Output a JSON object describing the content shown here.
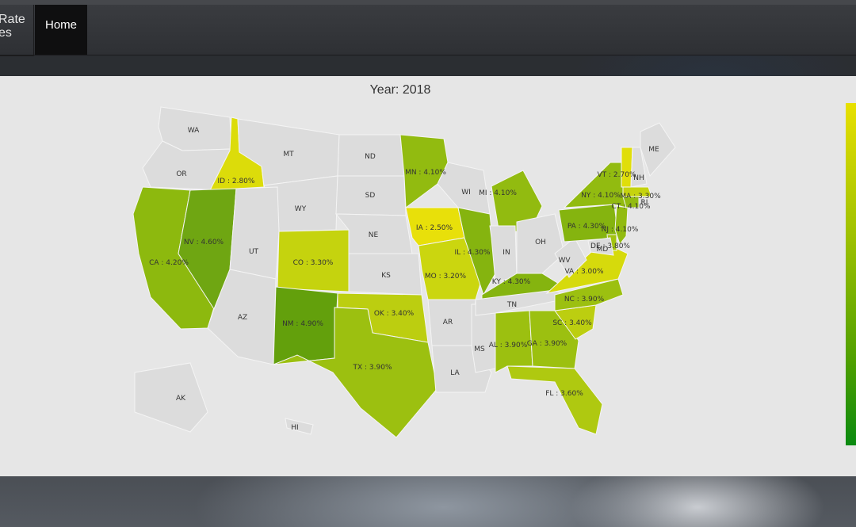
{
  "navbar": {
    "brand_line1": "Rate",
    "brand_line2": "es",
    "home_label": "Home"
  },
  "map": {
    "title": "Year: 2018",
    "legend_colors": [
      "#e8e000",
      "#9cc000",
      "#50a000",
      "#0a8a10"
    ],
    "no_data_color": "#dcdcdc",
    "states": [
      {
        "abbr": "WA",
        "label": "WA",
        "value": null,
        "color": "#dcdcdc"
      },
      {
        "abbr": "OR",
        "label": "OR",
        "value": null,
        "color": "#dcdcdc"
      },
      {
        "abbr": "CA",
        "label": "CA : 4.20%",
        "value": 4.2,
        "color": "#8db90e"
      },
      {
        "abbr": "ID",
        "label": "ID : 2.80%",
        "value": 2.8,
        "color": "#dcdc0a"
      },
      {
        "abbr": "NV",
        "label": "NV : 4.60%",
        "value": 4.6,
        "color": "#6fa612"
      },
      {
        "abbr": "MT",
        "label": "MT",
        "value": null,
        "color": "#dcdcdc"
      },
      {
        "abbr": "WY",
        "label": "WY",
        "value": null,
        "color": "#dcdcdc"
      },
      {
        "abbr": "UT",
        "label": "UT",
        "value": null,
        "color": "#dcdcdc"
      },
      {
        "abbr": "AZ",
        "label": "AZ",
        "value": null,
        "color": "#dcdcdc"
      },
      {
        "abbr": "CO",
        "label": "CO : 3.30%",
        "value": 3.3,
        "color": "#c5d30e"
      },
      {
        "abbr": "NM",
        "label": "NM : 4.90%",
        "value": 4.9,
        "color": "#63a00c"
      },
      {
        "abbr": "ND",
        "label": "ND",
        "value": null,
        "color": "#dcdcdc"
      },
      {
        "abbr": "SD",
        "label": "SD",
        "value": null,
        "color": "#dcdcdc"
      },
      {
        "abbr": "NE",
        "label": "NE",
        "value": null,
        "color": "#dcdcdc"
      },
      {
        "abbr": "KS",
        "label": "KS",
        "value": null,
        "color": "#dcdcdc"
      },
      {
        "abbr": "OK",
        "label": "OK : 3.40%",
        "value": 3.4,
        "color": "#bcce10"
      },
      {
        "abbr": "TX",
        "label": "TX : 3.90%",
        "value": 3.9,
        "color": "#9cc010"
      },
      {
        "abbr": "MN",
        "label": "MN : 4.10%",
        "value": 4.1,
        "color": "#92bb10"
      },
      {
        "abbr": "IA",
        "label": "IA : 2.50%",
        "value": 2.5,
        "color": "#e8e00a"
      },
      {
        "abbr": "MO",
        "label": "MO : 3.20%",
        "value": 3.2,
        "color": "#cbd60f"
      },
      {
        "abbr": "AR",
        "label": "AR",
        "value": null,
        "color": "#dcdcdc"
      },
      {
        "abbr": "LA",
        "label": "LA",
        "value": null,
        "color": "#dcdcdc"
      },
      {
        "abbr": "WI",
        "label": "WI",
        "value": null,
        "color": "#dcdcdc"
      },
      {
        "abbr": "IL",
        "label": "IL : 4.30%",
        "value": 4.3,
        "color": "#85b40f"
      },
      {
        "abbr": "MS",
        "label": "MS",
        "value": null,
        "color": "#dcdcdc"
      },
      {
        "abbr": "MI",
        "label": "MI : 4.10%",
        "value": 4.1,
        "color": "#92bb10"
      },
      {
        "abbr": "IN",
        "label": "IN",
        "value": null,
        "color": "#dcdcdc"
      },
      {
        "abbr": "OH",
        "label": "OH",
        "value": null,
        "color": "#dcdcdc"
      },
      {
        "abbr": "KY",
        "label": "KY : 4.30%",
        "value": 4.3,
        "color": "#85b40f"
      },
      {
        "abbr": "TN",
        "label": "TN",
        "value": null,
        "color": "#dcdcdc"
      },
      {
        "abbr": "AL",
        "label": "AL : 3.90%",
        "value": 3.9,
        "color": "#9cc010"
      },
      {
        "abbr": "GA",
        "label": "GA : 3.90%",
        "value": 3.9,
        "color": "#9cc010"
      },
      {
        "abbr": "FL",
        "label": "FL : 3.60%",
        "value": 3.6,
        "color": "#afc910"
      },
      {
        "abbr": "SC",
        "label": "SC : 3.40%",
        "value": 3.4,
        "color": "#bcce10"
      },
      {
        "abbr": "NC",
        "label": "NC : 3.90%",
        "value": 3.9,
        "color": "#9cc010"
      },
      {
        "abbr": "VA",
        "label": "VA : 3.00%",
        "value": 3.0,
        "color": "#d6da0c"
      },
      {
        "abbr": "WV",
        "label": "WV",
        "value": null,
        "color": "#dcdcdc"
      },
      {
        "abbr": "PA",
        "label": "PA : 4.30%",
        "value": 4.3,
        "color": "#85b40f"
      },
      {
        "abbr": "NY",
        "label": "NY : 4.10%",
        "value": 4.1,
        "color": "#92bb10"
      },
      {
        "abbr": "NJ",
        "label": "NJ : 4.10%",
        "value": 4.1,
        "color": "#92bb10"
      },
      {
        "abbr": "DE",
        "label": "DE : 3.80%",
        "value": 3.8,
        "color": "#a2c310"
      },
      {
        "abbr": "MD",
        "label": "MD",
        "value": null,
        "color": "#dcdcdc"
      },
      {
        "abbr": "CT",
        "label": "CT : 4.10%",
        "value": 4.1,
        "color": "#92bb10"
      },
      {
        "abbr": "RI",
        "label": "RI",
        "value": null,
        "color": "#dcdcdc"
      },
      {
        "abbr": "MA",
        "label": "MA : 3.30%",
        "value": 3.3,
        "color": "#c5d30e"
      },
      {
        "abbr": "VT",
        "label": "VT : 2.70%",
        "value": 2.7,
        "color": "#e0de0a"
      },
      {
        "abbr": "NH",
        "label": "NH",
        "value": null,
        "color": "#dcdcdc"
      },
      {
        "abbr": "ME",
        "label": "ME",
        "value": null,
        "color": "#dcdcdc"
      },
      {
        "abbr": "AK",
        "label": "AK",
        "value": null,
        "color": "#dcdcdc"
      },
      {
        "abbr": "HI",
        "label": "HI",
        "value": null,
        "color": "#dcdcdc"
      }
    ]
  }
}
